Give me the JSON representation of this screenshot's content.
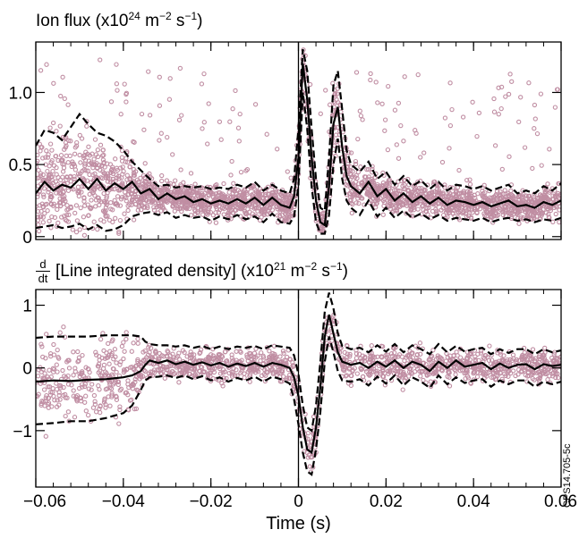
{
  "titles": {
    "top_prefix": "Ion flux (x10",
    "top_exp": "24",
    "top_mid": " m",
    "top_exp2": "−2",
    "top_mid2": " s",
    "top_exp3": "−1",
    "top_end": ")",
    "bottom_num": "d",
    "bottom_den": "dt",
    "bottom_prefix": "[Line integrated density] (x10",
    "bottom_exp": "21",
    "bottom_mid": " m",
    "bottom_exp2": "−2",
    "bottom_mid2": " s",
    "bottom_exp3": "−1",
    "bottom_end": ")"
  },
  "stamp": "CPS14.705-5c",
  "colors": {
    "scatter": "#c08ea3",
    "line": "#000000"
  },
  "chart_data": [
    {
      "type": "scatter",
      "title": "Ion flux (x10^24 m^-2 s^-1)",
      "xlabel": "",
      "ylabel": "",
      "xlim": [
        -0.06,
        0.06
      ],
      "ylim": [
        -0.02,
        1.35
      ],
      "yticks": [
        0,
        0.5,
        1.0
      ],
      "ytick_labels": [
        "0",
        "0.5",
        "1.0"
      ],
      "xticks": [
        -0.06,
        -0.04,
        -0.02,
        0,
        0.02,
        0.04,
        0.06
      ],
      "vline": 0,
      "series": [
        {
          "style": "solid",
          "x": [
            -0.06,
            -0.058,
            -0.056,
            -0.054,
            -0.052,
            -0.05,
            -0.048,
            -0.046,
            -0.044,
            -0.042,
            -0.04,
            -0.038,
            -0.036,
            -0.034,
            -0.032,
            -0.03,
            -0.028,
            -0.026,
            -0.024,
            -0.022,
            -0.02,
            -0.018,
            -0.016,
            -0.014,
            -0.012,
            -0.01,
            -0.008,
            -0.006,
            -0.004,
            -0.002,
            -0.001,
            0.0,
            0.001,
            0.002,
            0.003,
            0.004,
            0.005,
            0.006,
            0.007,
            0.008,
            0.009,
            0.01,
            0.011,
            0.012,
            0.014,
            0.016,
            0.018,
            0.02,
            0.022,
            0.024,
            0.026,
            0.028,
            0.03,
            0.032,
            0.034,
            0.036,
            0.038,
            0.04,
            0.042,
            0.044,
            0.046,
            0.048,
            0.05,
            0.052,
            0.054,
            0.056,
            0.058,
            0.06
          ],
          "y": [
            0.3,
            0.38,
            0.32,
            0.36,
            0.34,
            0.4,
            0.33,
            0.4,
            0.32,
            0.37,
            0.33,
            0.38,
            0.3,
            0.33,
            0.26,
            0.3,
            0.26,
            0.28,
            0.24,
            0.26,
            0.23,
            0.25,
            0.23,
            0.26,
            0.23,
            0.27,
            0.22,
            0.27,
            0.22,
            0.2,
            0.28,
            0.55,
            1.2,
            0.95,
            0.55,
            0.25,
            0.1,
            0.08,
            0.35,
            0.78,
            0.9,
            0.62,
            0.42,
            0.35,
            0.3,
            0.38,
            0.28,
            0.33,
            0.25,
            0.3,
            0.24,
            0.28,
            0.23,
            0.27,
            0.22,
            0.25,
            0.24,
            0.22,
            0.24,
            0.21,
            0.23,
            0.25,
            0.21,
            0.22,
            0.2,
            0.24,
            0.22,
            0.25
          ]
        },
        {
          "style": "dashed",
          "x": [
            -0.06,
            -0.058,
            -0.056,
            -0.054,
            -0.052,
            -0.05,
            -0.048,
            -0.046,
            -0.044,
            -0.042,
            -0.04,
            -0.038,
            -0.036,
            -0.034,
            -0.032,
            -0.03,
            -0.028,
            -0.026,
            -0.024,
            -0.022,
            -0.02,
            -0.018,
            -0.016,
            -0.014,
            -0.012,
            -0.01,
            -0.008,
            -0.006,
            -0.004,
            -0.002,
            -0.001,
            0.0,
            0.001,
            0.002,
            0.003,
            0.004,
            0.005,
            0.006,
            0.007,
            0.008,
            0.009,
            0.01,
            0.011,
            0.012,
            0.014,
            0.016,
            0.018,
            0.02,
            0.022,
            0.024,
            0.026,
            0.028,
            0.03,
            0.032,
            0.034,
            0.036,
            0.038,
            0.04,
            0.042,
            0.044,
            0.046,
            0.048,
            0.05,
            0.052,
            0.054,
            0.056,
            0.058,
            0.06
          ],
          "y": [
            0.63,
            0.74,
            0.72,
            0.67,
            0.76,
            0.85,
            0.78,
            0.72,
            0.7,
            0.66,
            0.6,
            0.52,
            0.46,
            0.4,
            0.35,
            0.36,
            0.34,
            0.35,
            0.34,
            0.35,
            0.33,
            0.34,
            0.33,
            0.36,
            0.34,
            0.38,
            0.32,
            0.36,
            0.32,
            0.3,
            0.4,
            0.75,
            1.3,
            1.15,
            0.75,
            0.4,
            0.2,
            0.18,
            0.55,
            1.05,
            1.15,
            0.88,
            0.6,
            0.5,
            0.45,
            0.52,
            0.4,
            0.45,
            0.36,
            0.42,
            0.35,
            0.39,
            0.33,
            0.38,
            0.32,
            0.36,
            0.35,
            0.33,
            0.35,
            0.32,
            0.34,
            0.36,
            0.3,
            0.32,
            0.3,
            0.35,
            0.32,
            0.37
          ]
        },
        {
          "style": "dashed",
          "x": [
            -0.06,
            -0.058,
            -0.056,
            -0.054,
            -0.052,
            -0.05,
            -0.048,
            -0.046,
            -0.044,
            -0.042,
            -0.04,
            -0.038,
            -0.036,
            -0.034,
            -0.032,
            -0.03,
            -0.028,
            -0.026,
            -0.024,
            -0.022,
            -0.02,
            -0.018,
            -0.016,
            -0.014,
            -0.012,
            -0.01,
            -0.008,
            -0.006,
            -0.004,
            -0.002,
            -0.001,
            0.0,
            0.001,
            0.002,
            0.003,
            0.004,
            0.005,
            0.006,
            0.007,
            0.008,
            0.009,
            0.01,
            0.011,
            0.012,
            0.014,
            0.016,
            0.018,
            0.02,
            0.022,
            0.024,
            0.026,
            0.028,
            0.03,
            0.032,
            0.034,
            0.036,
            0.038,
            0.04,
            0.042,
            0.044,
            0.046,
            0.048,
            0.05,
            0.052,
            0.054,
            0.056,
            0.058,
            0.06
          ],
          "y": [
            0.06,
            0.07,
            0.08,
            0.06,
            0.07,
            0.09,
            0.05,
            0.08,
            0.04,
            0.05,
            0.08,
            0.14,
            0.16,
            0.17,
            0.15,
            0.17,
            0.13,
            0.15,
            0.13,
            0.14,
            0.11,
            0.14,
            0.12,
            0.15,
            0.12,
            0.14,
            0.1,
            0.16,
            0.1,
            0.09,
            0.14,
            0.35,
            1.0,
            0.75,
            0.35,
            0.1,
            0.02,
            0.02,
            0.15,
            0.5,
            0.68,
            0.4,
            0.25,
            0.2,
            0.15,
            0.25,
            0.14,
            0.2,
            0.13,
            0.18,
            0.13,
            0.16,
            0.12,
            0.15,
            0.11,
            0.13,
            0.12,
            0.11,
            0.13,
            0.1,
            0.12,
            0.13,
            0.11,
            0.12,
            0.1,
            0.12,
            0.11,
            0.13
          ]
        }
      ]
    },
    {
      "type": "scatter",
      "title": "d/dt [Line integrated density] (x10^21 m^-2 s^-1)",
      "xlabel": "Time (s)",
      "ylabel": "",
      "xlim": [
        -0.06,
        0.06
      ],
      "ylim": [
        -1.9,
        1.25
      ],
      "yticks": [
        -1,
        0,
        1
      ],
      "ytick_labels": [
        "−1",
        "0",
        "1"
      ],
      "xticks": [
        -0.06,
        -0.04,
        -0.02,
        0,
        0.02,
        0.04,
        0.06
      ],
      "xtick_labels": [
        "−0.06",
        "−0.04",
        "−0.02",
        "0",
        "0.02",
        "0.04",
        "0.06"
      ],
      "vline": 0,
      "series": [
        {
          "style": "solid",
          "x": [
            -0.06,
            -0.056,
            -0.052,
            -0.048,
            -0.044,
            -0.04,
            -0.038,
            -0.036,
            -0.035,
            -0.034,
            -0.032,
            -0.03,
            -0.028,
            -0.026,
            -0.024,
            -0.022,
            -0.02,
            -0.018,
            -0.016,
            -0.014,
            -0.012,
            -0.01,
            -0.008,
            -0.006,
            -0.004,
            -0.002,
            -0.001,
            0.0,
            0.001,
            0.002,
            0.003,
            0.004,
            0.005,
            0.006,
            0.007,
            0.008,
            0.009,
            0.01,
            0.012,
            0.014,
            0.016,
            0.018,
            0.02,
            0.022,
            0.024,
            0.026,
            0.028,
            0.03,
            0.032,
            0.034,
            0.036,
            0.038,
            0.04,
            0.042,
            0.044,
            0.046,
            0.048,
            0.05,
            0.052,
            0.054,
            0.056,
            0.058,
            0.06
          ],
          "y": [
            -0.22,
            -0.2,
            -0.21,
            -0.19,
            -0.18,
            -0.15,
            -0.12,
            -0.05,
            0.05,
            0.12,
            0.08,
            0.12,
            0.06,
            0.1,
            0.05,
            0.09,
            0.04,
            0.08,
            0.02,
            0.07,
            0.03,
            0.08,
            0.02,
            0.08,
            0.05,
            0.0,
            -0.15,
            -0.45,
            -0.95,
            -1.3,
            -1.35,
            -0.95,
            -0.3,
            0.5,
            0.85,
            0.55,
            0.25,
            0.1,
            0.05,
            0.08,
            0.0,
            0.1,
            0.02,
            0.12,
            0.0,
            0.1,
            0.05,
            -0.05,
            0.1,
            0.0,
            0.12,
            0.02,
            0.05,
            0.08,
            -0.02,
            0.07,
            0.0,
            0.05,
            0.06,
            -0.02,
            0.06,
            0.03,
            0.05
          ]
        },
        {
          "style": "dashed",
          "x": [
            -0.06,
            -0.056,
            -0.052,
            -0.048,
            -0.044,
            -0.04,
            -0.038,
            -0.036,
            -0.035,
            -0.034,
            -0.032,
            -0.03,
            -0.028,
            -0.026,
            -0.024,
            -0.022,
            -0.02,
            -0.018,
            -0.016,
            -0.014,
            -0.012,
            -0.01,
            -0.008,
            -0.006,
            -0.004,
            -0.002,
            -0.001,
            0.0,
            0.001,
            0.002,
            0.003,
            0.004,
            0.005,
            0.006,
            0.007,
            0.008,
            0.009,
            0.01,
            0.012,
            0.014,
            0.016,
            0.018,
            0.02,
            0.022,
            0.024,
            0.026,
            0.028,
            0.03,
            0.032,
            0.034,
            0.036,
            0.038,
            0.04,
            0.042,
            0.044,
            0.046,
            0.048,
            0.05,
            0.052,
            0.054,
            0.056,
            0.058,
            0.06
          ],
          "y": [
            0.48,
            0.5,
            0.5,
            0.5,
            0.52,
            0.52,
            0.52,
            0.5,
            0.42,
            0.38,
            0.36,
            0.36,
            0.34,
            0.36,
            0.32,
            0.35,
            0.3,
            0.34,
            0.3,
            0.34,
            0.32,
            0.35,
            0.3,
            0.36,
            0.34,
            0.32,
            0.2,
            -0.1,
            -0.6,
            -0.95,
            -1.0,
            -0.6,
            0.1,
            0.9,
            1.2,
            0.95,
            0.55,
            0.35,
            0.3,
            0.32,
            0.25,
            0.36,
            0.26,
            0.38,
            0.25,
            0.36,
            0.3,
            0.22,
            0.38,
            0.25,
            0.35,
            0.26,
            0.3,
            0.32,
            0.22,
            0.3,
            0.24,
            0.3,
            0.3,
            0.22,
            0.3,
            0.25,
            0.28
          ]
        },
        {
          "style": "dashed",
          "x": [
            -0.06,
            -0.056,
            -0.052,
            -0.048,
            -0.044,
            -0.04,
            -0.038,
            -0.036,
            -0.035,
            -0.034,
            -0.032,
            -0.03,
            -0.028,
            -0.026,
            -0.024,
            -0.022,
            -0.02,
            -0.018,
            -0.016,
            -0.014,
            -0.012,
            -0.01,
            -0.008,
            -0.006,
            -0.004,
            -0.002,
            -0.001,
            0.0,
            0.001,
            0.002,
            0.003,
            0.004,
            0.005,
            0.006,
            0.007,
            0.008,
            0.009,
            0.01,
            0.012,
            0.014,
            0.016,
            0.018,
            0.02,
            0.022,
            0.024,
            0.026,
            0.028,
            0.03,
            0.032,
            0.034,
            0.036,
            0.038,
            0.04,
            0.042,
            0.044,
            0.046,
            0.048,
            0.05,
            0.052,
            0.054,
            0.056,
            0.058,
            0.06
          ],
          "y": [
            -0.9,
            -0.88,
            -0.85,
            -0.85,
            -0.8,
            -0.72,
            -0.6,
            -0.35,
            -0.2,
            -0.15,
            -0.14,
            -0.12,
            -0.16,
            -0.12,
            -0.18,
            -0.13,
            -0.2,
            -0.15,
            -0.22,
            -0.16,
            -0.2,
            -0.14,
            -0.22,
            -0.14,
            -0.18,
            -0.25,
            -0.5,
            -0.9,
            -1.35,
            -1.65,
            -1.7,
            -1.3,
            -0.7,
            0.1,
            0.5,
            0.25,
            -0.05,
            -0.2,
            -0.22,
            -0.18,
            -0.28,
            -0.14,
            -0.25,
            -0.12,
            -0.28,
            -0.15,
            -0.22,
            -0.32,
            -0.12,
            -0.26,
            -0.15,
            -0.24,
            -0.2,
            -0.18,
            -0.3,
            -0.2,
            -0.26,
            -0.2,
            -0.2,
            -0.3,
            -0.22,
            -0.26,
            -0.22
          ]
        }
      ]
    }
  ]
}
